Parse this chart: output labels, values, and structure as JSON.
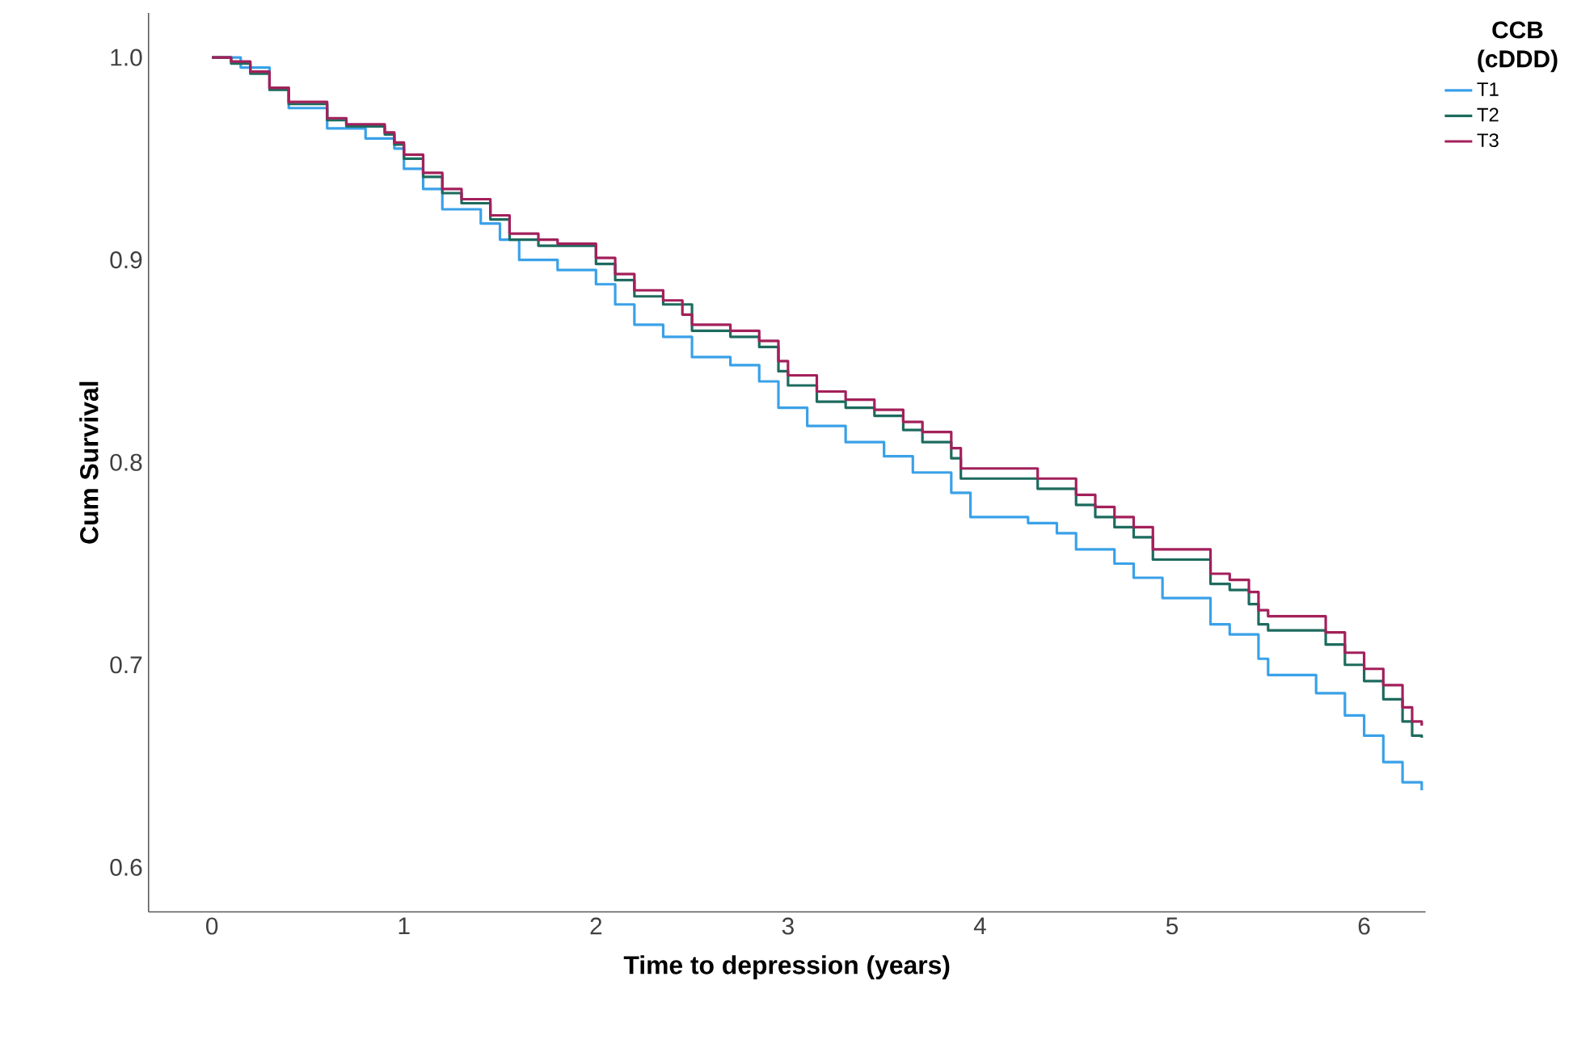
{
  "chart_data": {
    "type": "step",
    "xlabel": "Time to depression (years)",
    "ylabel": "Cum Survival",
    "legend_title": "CCB (cDDD)",
    "legend": "right",
    "grid": false,
    "xlim": [
      -0.33,
      6.32
    ],
    "ylim": [
      0.578,
      1.022
    ],
    "xticks": [
      0,
      1,
      2,
      3,
      4,
      5,
      6
    ],
    "yticks": [
      0.6,
      0.7,
      0.8,
      0.9,
      {
        "value": 1.0,
        "label": "1.0"
      }
    ],
    "series": [
      {
        "name": "T1",
        "color": "#3aa1e8",
        "x": [
          0,
          0.15,
          0.3,
          0.4,
          0.6,
          0.8,
          0.95,
          1.0,
          1.1,
          1.2,
          1.4,
          1.5,
          1.6,
          1.8,
          2.0,
          2.1,
          2.2,
          2.35,
          2.5,
          2.7,
          2.85,
          2.95,
          3.1,
          3.3,
          3.5,
          3.65,
          3.85,
          3.95,
          4.25,
          4.4,
          4.5,
          4.7,
          4.8,
          4.95,
          5.2,
          5.3,
          5.45,
          5.5,
          5.75,
          5.9,
          6.0,
          6.1,
          6.2,
          6.3
        ],
        "values": [
          1.0,
          0.995,
          0.985,
          0.975,
          0.965,
          0.96,
          0.955,
          0.945,
          0.935,
          0.925,
          0.918,
          0.91,
          0.9,
          0.895,
          0.888,
          0.878,
          0.868,
          0.862,
          0.852,
          0.848,
          0.84,
          0.827,
          0.818,
          0.81,
          0.803,
          0.795,
          0.785,
          0.773,
          0.77,
          0.765,
          0.757,
          0.75,
          0.743,
          0.733,
          0.72,
          0.715,
          0.703,
          0.695,
          0.686,
          0.675,
          0.665,
          0.652,
          0.642,
          0.638
        ]
      },
      {
        "name": "T2",
        "color": "#1d6b5e",
        "x": [
          0,
          0.1,
          0.2,
          0.3,
          0.4,
          0.6,
          0.7,
          0.9,
          0.95,
          1.0,
          1.1,
          1.2,
          1.3,
          1.45,
          1.55,
          1.7,
          2.0,
          2.1,
          2.2,
          2.35,
          2.5,
          2.7,
          2.85,
          2.95,
          3.0,
          3.15,
          3.3,
          3.45,
          3.6,
          3.7,
          3.85,
          3.9,
          4.3,
          4.5,
          4.6,
          4.7,
          4.8,
          4.9,
          5.2,
          5.3,
          5.4,
          5.45,
          5.5,
          5.8,
          5.9,
          6.0,
          6.1,
          6.2,
          6.25,
          6.3
        ],
        "values": [
          1.0,
          0.997,
          0.992,
          0.984,
          0.977,
          0.969,
          0.966,
          0.962,
          0.957,
          0.95,
          0.941,
          0.933,
          0.928,
          0.92,
          0.91,
          0.907,
          0.898,
          0.89,
          0.882,
          0.878,
          0.865,
          0.862,
          0.857,
          0.845,
          0.838,
          0.83,
          0.827,
          0.823,
          0.816,
          0.81,
          0.802,
          0.792,
          0.787,
          0.779,
          0.773,
          0.768,
          0.763,
          0.752,
          0.74,
          0.737,
          0.73,
          0.72,
          0.717,
          0.71,
          0.7,
          0.692,
          0.683,
          0.672,
          0.665,
          0.664
        ]
      },
      {
        "name": "T3",
        "color": "#a3205b",
        "x": [
          0,
          0.1,
          0.2,
          0.3,
          0.4,
          0.6,
          0.7,
          0.9,
          0.95,
          1.0,
          1.1,
          1.2,
          1.3,
          1.45,
          1.55,
          1.7,
          1.8,
          2.0,
          2.1,
          2.2,
          2.35,
          2.45,
          2.5,
          2.7,
          2.85,
          2.95,
          3.0,
          3.15,
          3.3,
          3.45,
          3.6,
          3.7,
          3.85,
          3.9,
          4.3,
          4.5,
          4.6,
          4.7,
          4.8,
          4.9,
          5.2,
          5.3,
          5.4,
          5.45,
          5.5,
          5.8,
          5.9,
          6.0,
          6.1,
          6.2,
          6.25,
          6.3
        ],
        "values": [
          1.0,
          0.998,
          0.993,
          0.985,
          0.978,
          0.97,
          0.967,
          0.963,
          0.958,
          0.952,
          0.943,
          0.935,
          0.93,
          0.922,
          0.913,
          0.91,
          0.908,
          0.901,
          0.893,
          0.885,
          0.88,
          0.873,
          0.868,
          0.865,
          0.86,
          0.85,
          0.843,
          0.835,
          0.831,
          0.826,
          0.82,
          0.815,
          0.807,
          0.797,
          0.792,
          0.784,
          0.778,
          0.773,
          0.768,
          0.757,
          0.745,
          0.742,
          0.736,
          0.727,
          0.724,
          0.716,
          0.706,
          0.698,
          0.69,
          0.679,
          0.672,
          0.67
        ]
      }
    ]
  }
}
